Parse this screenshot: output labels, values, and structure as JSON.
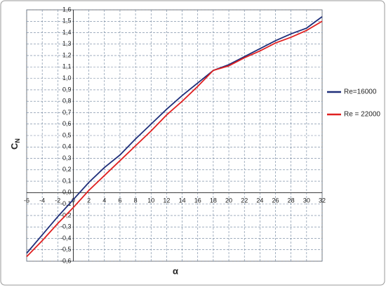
{
  "chart_data": {
    "type": "line",
    "x_label": "α",
    "y_label": "C",
    "y_label_subscript": "N",
    "x": [
      -6,
      -4,
      -2,
      0,
      2,
      4,
      6,
      8,
      10,
      12,
      14,
      16,
      18,
      20,
      22,
      24,
      26,
      28,
      30,
      32
    ],
    "series": [
      {
        "name": "Re=16000",
        "color": "#1f2f7a",
        "values": [
          -0.53,
          -0.37,
          -0.21,
          -0.06,
          0.09,
          0.22,
          0.33,
          0.47,
          0.6,
          0.73,
          0.85,
          0.96,
          1.07,
          1.12,
          1.19,
          1.26,
          1.33,
          1.39,
          1.44,
          1.54
        ]
      },
      {
        "name": "Re = 22000",
        "color": "#e02020",
        "values": [
          -0.56,
          -0.42,
          -0.27,
          -0.13,
          0.02,
          0.15,
          0.28,
          0.41,
          0.54,
          0.68,
          0.8,
          0.93,
          1.07,
          1.11,
          1.18,
          1.24,
          1.31,
          1.36,
          1.42,
          1.5
        ]
      }
    ],
    "xlim": [
      -6,
      32
    ],
    "xticks": [
      -6,
      -4,
      -2,
      0,
      2,
      4,
      6,
      8,
      10,
      12,
      14,
      16,
      18,
      20,
      22,
      24,
      26,
      28,
      30,
      32
    ],
    "ylim": [
      -0.6,
      1.6
    ],
    "yticks": [
      {
        "value": -0.6,
        "label": "-0,6"
      },
      {
        "value": -0.5,
        "label": "-0,5"
      },
      {
        "value": -0.4,
        "label": "-0,4"
      },
      {
        "value": -0.3,
        "label": "-0,3"
      },
      {
        "value": -0.2,
        "label": "-0,2"
      },
      {
        "value": -0.1,
        "label": "-0,1"
      },
      {
        "value": 0,
        "label": "0,0"
      },
      {
        "value": 0.1,
        "label": "0,1"
      },
      {
        "value": 0.2,
        "label": "0,2"
      },
      {
        "value": 0.3,
        "label": "0,3"
      },
      {
        "value": 0.4,
        "label": "0,4"
      },
      {
        "value": 0.5,
        "label": "0,5"
      },
      {
        "value": 0.6,
        "label": "0,6"
      },
      {
        "value": 0.7,
        "label": "0,7"
      },
      {
        "value": 0.8,
        "label": "0,8"
      },
      {
        "value": 0.9,
        "label": "0,9"
      },
      {
        "value": 1.0,
        "label": "1,0"
      },
      {
        "value": 1.1,
        "label": "1,1"
      },
      {
        "value": 1.2,
        "label": "1,2"
      },
      {
        "value": 1.3,
        "label": "1,3"
      },
      {
        "value": 1.4,
        "label": "1,4"
      },
      {
        "value": 1.5,
        "label": "1,5"
      },
      {
        "value": 1.6,
        "label": "1,6"
      }
    ],
    "grid": true,
    "legend": "right"
  }
}
